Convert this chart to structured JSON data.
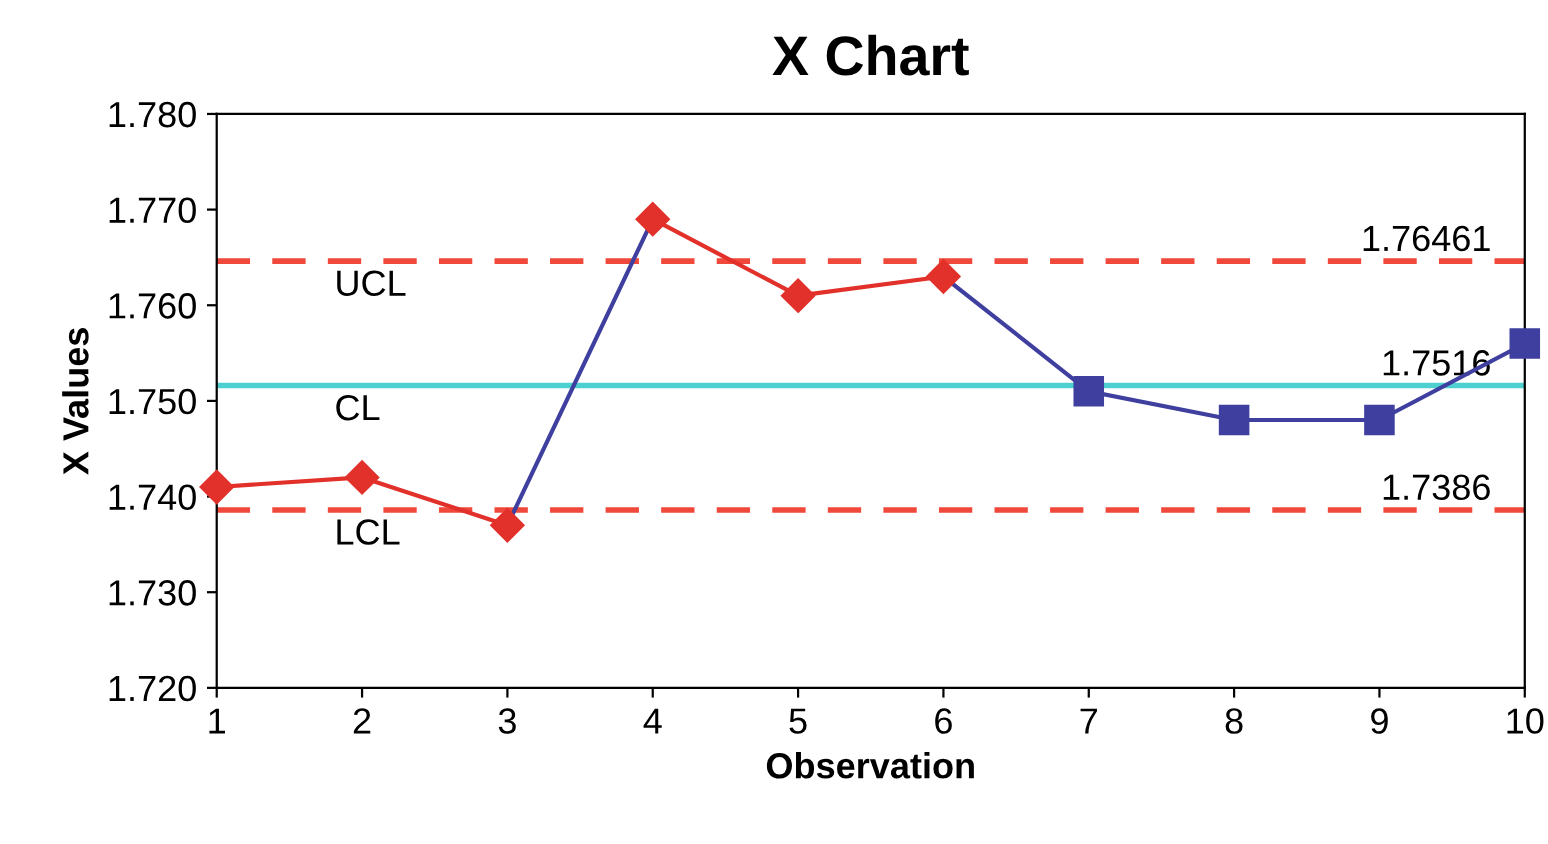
{
  "chart_data": {
    "type": "line",
    "title": "X Chart",
    "xlabel": "Observation",
    "ylabel": "X Values",
    "series": [
      {
        "x": [
          3,
          4
        ],
        "values": [
          1.737,
          1.769
        ],
        "color": "#3f3f9f"
      },
      {
        "x": [
          6,
          7
        ],
        "values": [
          1.763,
          1.751
        ],
        "color": "#3f3f9f"
      },
      {
        "x": [
          7,
          8,
          9,
          10
        ],
        "values": [
          1.751,
          1.748,
          1.748,
          1.756
        ],
        "color": "#3f3f9f",
        "marker": "square"
      },
      {
        "x": [
          1,
          2,
          3
        ],
        "values": [
          1.741,
          1.742,
          1.737
        ],
        "color": "#e2302a",
        "marker": "diamond"
      },
      {
        "x": [
          4,
          5,
          6
        ],
        "values": [
          1.769,
          1.761,
          1.763
        ],
        "color": "#e2302a",
        "marker": "diamond"
      }
    ],
    "ref_lines": [
      {
        "axis": "y",
        "value": 1.76461,
        "label": "UCL",
        "color": "#f0483a",
        "line_style": "dashed"
      },
      {
        "axis": "y",
        "value": 1.7516,
        "label": "CL",
        "color": "#4fd0d0",
        "line_style": "solid"
      },
      {
        "axis": "y",
        "value": 1.7386,
        "label": "LCL",
        "color": "#f0483a",
        "line_style": "dashed"
      }
    ],
    "xlim": [
      1,
      10
    ],
    "xticks": [
      1,
      2,
      3,
      4,
      5,
      6,
      7,
      8,
      9,
      10
    ],
    "ylim": [
      1.72,
      1.78
    ],
    "yticks": [
      {
        "value": 1.72,
        "label": "1.720"
      },
      {
        "value": 1.73,
        "label": "1.730"
      },
      {
        "value": 1.74,
        "label": "1.740"
      },
      {
        "value": 1.75,
        "label": "1.750"
      },
      {
        "value": 1.76,
        "label": "1.760"
      },
      {
        "value": 1.77,
        "label": "1.770"
      },
      {
        "value": 1.78,
        "label": "1.780"
      }
    ],
    "annotations": [
      {
        "text": "1.76461",
        "y": 1.76461
      },
      {
        "text": "1.7516",
        "y": 1.7516
      },
      {
        "text": "1.7386",
        "y": 1.7386
      }
    ],
    "grid": false
  }
}
